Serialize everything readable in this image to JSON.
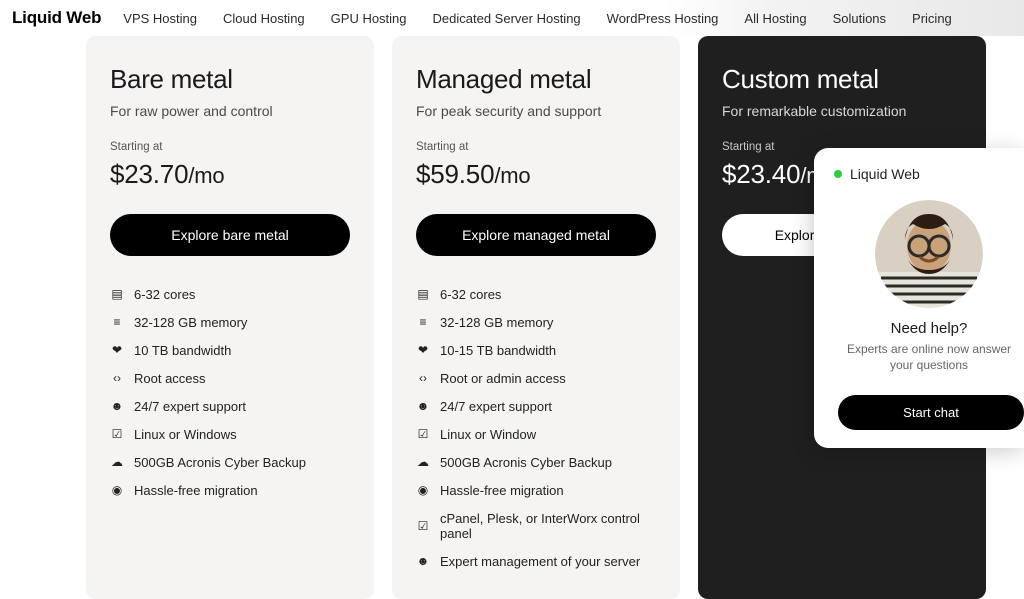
{
  "brand": "Liquid Web",
  "nav": [
    "VPS Hosting",
    "Cloud Hosting",
    "GPU Hosting",
    "Dedicated Server Hosting",
    "WordPress Hosting",
    "All Hosting",
    "Solutions",
    "Pricing"
  ],
  "starting_label": "Starting at",
  "plans": [
    {
      "id": "bare-metal",
      "theme": "light",
      "title": "Bare metal",
      "tagline": "For raw power and control",
      "price": "$23.70",
      "per": "/mo",
      "cta": "Explore bare metal",
      "features": [
        {
          "icon": "cpu",
          "text": "6-32 cores"
        },
        {
          "icon": "memory",
          "text": "32-128 GB memory"
        },
        {
          "icon": "bw",
          "text": "10 TB bandwidth"
        },
        {
          "icon": "root",
          "text": "Root access"
        },
        {
          "icon": "support",
          "text": "24/7 expert support"
        },
        {
          "icon": "check",
          "text": "Linux or Windows"
        },
        {
          "icon": "cloud",
          "text": "500GB Acronis Cyber Backup"
        },
        {
          "icon": "dotcheck",
          "text": "Hassle-free migration"
        }
      ]
    },
    {
      "id": "managed-metal",
      "theme": "light",
      "title": "Managed metal",
      "tagline": "For peak security and support",
      "price": "$59.50",
      "per": "/mo",
      "cta": "Explore managed metal",
      "features": [
        {
          "icon": "cpu",
          "text": "6-32 cores"
        },
        {
          "icon": "memory",
          "text": "32-128 GB memory"
        },
        {
          "icon": "bw",
          "text": "10-15 TB bandwidth"
        },
        {
          "icon": "root",
          "text": "Root or admin access"
        },
        {
          "icon": "support",
          "text": "24/7 expert support"
        },
        {
          "icon": "check",
          "text": "Linux or Window"
        },
        {
          "icon": "cloud",
          "text": "500GB Acronis Cyber Backup"
        },
        {
          "icon": "dotcheck",
          "text": "Hassle-free migration"
        },
        {
          "icon": "check",
          "text": "cPanel, Plesk, or InterWorx control panel"
        },
        {
          "icon": "support",
          "text": "Expert management of your server"
        }
      ]
    },
    {
      "id": "custom-metal",
      "theme": "dark",
      "title": "Custom metal",
      "tagline": "For remarkable customization",
      "price": "$23.40",
      "per": "/mo",
      "cta": "Explore custom metal",
      "features": []
    }
  ],
  "chat": {
    "brand": "Liquid Web",
    "heading": "Need help?",
    "sub": "Experts are online now answer your questions",
    "cta": "Start chat",
    "status_color": "#2ecc40"
  },
  "colors": {
    "card_light_bg": "#f6f4f2",
    "card_dark_bg": "#1f1f1f",
    "cta_dark_bg": "#000000",
    "cta_dark_fg": "#ffffff",
    "body_bg": "#ffffff"
  },
  "icon_glyphs": {
    "cpu": "▤",
    "memory": "≡",
    "bw": "❤",
    "root": "‹›",
    "support": "☻",
    "check": "☑",
    "cloud": "☁",
    "dotcheck": "◉"
  }
}
